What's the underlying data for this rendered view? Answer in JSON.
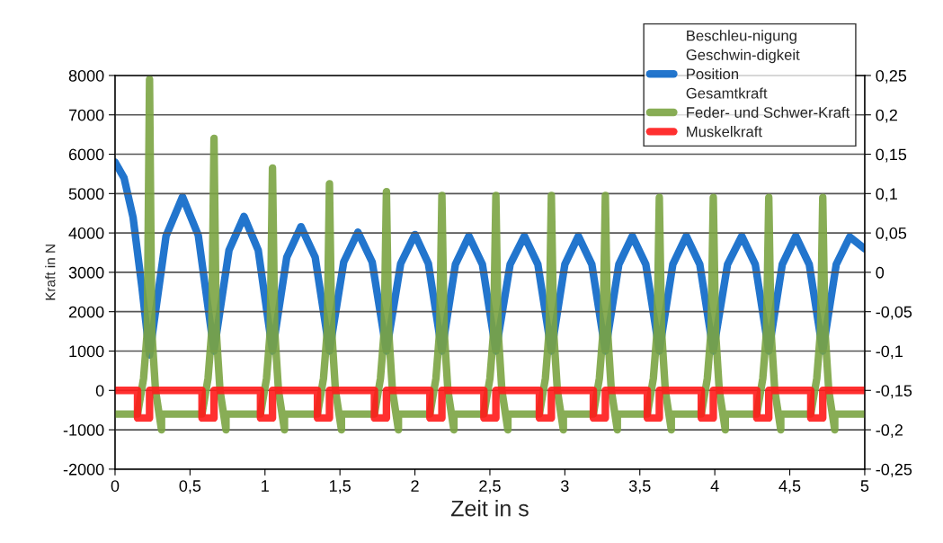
{
  "chart_data": {
    "type": "line",
    "xlabel": "Zeit in s",
    "ylabel": "Kraft in N",
    "xlim": [
      0,
      5
    ],
    "xticks": [
      0,
      {
        "value": 0.5,
        "label": "0,5"
      },
      1,
      {
        "value": 1.5,
        "label": "1,5"
      },
      2,
      {
        "value": 2.5,
        "label": "2,5"
      },
      3,
      {
        "value": 3.5,
        "label": "3,5"
      },
      4,
      {
        "value": 4.5,
        "label": "4,5"
      },
      5
    ],
    "ylim": [
      -2000,
      8000
    ],
    "yticks": [
      -2000,
      -1000,
      0,
      1000,
      2000,
      3000,
      4000,
      5000,
      6000,
      7000,
      8000
    ],
    "y2lim": [
      -0.25,
      0.25
    ],
    "y2ticks": [
      {
        "value": -0.25,
        "label": "-0,25"
      },
      {
        "value": -0.2,
        "label": "-0,2"
      },
      {
        "value": -0.15,
        "label": "-0,15"
      },
      {
        "value": -0.1,
        "label": "-0,1"
      },
      {
        "value": -0.05,
        "label": "-0,05"
      },
      0,
      {
        "value": 0.05,
        "label": "0,05"
      },
      {
        "value": 0.1,
        "label": "0,1"
      },
      {
        "value": 0.15,
        "label": "0,15"
      },
      {
        "value": 0.2,
        "label": "0,2"
      },
      {
        "value": 0.25,
        "label": "0,25"
      }
    ],
    "grid": "y",
    "legend": "top right",
    "marker": "none",
    "line_style": "solid",
    "series": [
      {
        "name": "Beschleu-nigung"
      },
      {
        "name": "Geschwin-digkeit"
      },
      {
        "name": "Position",
        "color": "#0a66c8",
        "axis": "y2",
        "x": [
          0,
          0.06,
          0.12,
          0.18,
          0.23,
          0.34,
          0.45,
          0.555,
          0.66,
          0.76,
          0.86,
          0.955,
          1.05,
          1.145,
          1.24,
          1.335,
          1.43,
          1.525,
          1.62,
          1.715,
          1.81,
          1.905,
          2.0,
          2.09,
          2.18,
          2.27,
          2.36,
          2.45,
          2.54,
          2.635,
          2.73,
          2.82,
          2.91,
          3.0,
          3.09,
          3.18,
          3.27,
          3.36,
          3.45,
          3.54,
          3.63,
          3.72,
          3.81,
          3.9,
          3.99,
          4.085,
          4.18,
          4.27,
          4.36,
          4.45,
          4.54,
          4.63,
          4.72,
          4.81,
          4.9,
          5.0
        ],
        "values": [
          0.14,
          0.12,
          0.07,
          -0.02,
          -0.105,
          0.046,
          0.096,
          0.047,
          -0.1,
          0.028,
          0.071,
          0.028,
          -0.1,
          0.019,
          0.058,
          0.019,
          -0.1,
          0.013,
          0.051,
          0.013,
          -0.1,
          0.011,
          0.048,
          0.011,
          -0.1,
          0.01,
          0.046,
          0.01,
          -0.1,
          0.01,
          0.046,
          0.01,
          -0.1,
          0.01,
          0.046,
          0.01,
          -0.1,
          0.01,
          0.046,
          0.01,
          -0.1,
          0.01,
          0.046,
          0.01,
          -0.1,
          0.01,
          0.046,
          0.01,
          -0.1,
          0.01,
          0.046,
          0.01,
          -0.1,
          0.01,
          0.045,
          0.03
        ]
      },
      {
        "name": "Gesamtkraft"
      },
      {
        "name": "Feder- und Schwer-Kraft",
        "color": "#7ba443",
        "x": [
          0,
          0.15,
          0.19,
          0.215,
          0.23,
          0.245,
          0.27,
          0.31,
          0.31,
          0.58,
          0.62,
          0.645,
          0.66,
          0.675,
          0.7,
          0.74,
          0.74,
          0.97,
          1.01,
          1.035,
          1.05,
          1.065,
          1.09,
          1.13,
          1.13,
          1.35,
          1.39,
          1.415,
          1.43,
          1.445,
          1.47,
          1.51,
          1.51,
          1.73,
          1.77,
          1.795,
          1.81,
          1.825,
          1.85,
          1.89,
          1.89,
          2.1,
          2.14,
          2.165,
          2.18,
          2.195,
          2.22,
          2.26,
          2.26,
          2.46,
          2.5,
          2.525,
          2.54,
          2.555,
          2.58,
          2.62,
          2.62,
          2.83,
          2.87,
          2.895,
          2.91,
          2.925,
          2.95,
          2.99,
          2.99,
          3.19,
          3.23,
          3.255,
          3.27,
          3.285,
          3.31,
          3.35,
          3.35,
          3.55,
          3.59,
          3.615,
          3.63,
          3.645,
          3.67,
          3.71,
          3.71,
          3.91,
          3.95,
          3.975,
          3.99,
          4.005,
          4.03,
          4.07,
          4.07,
          4.28,
          4.32,
          4.345,
          4.36,
          4.375,
          4.4,
          4.44,
          4.44,
          4.64,
          4.68,
          4.705,
          4.72,
          4.735,
          4.76,
          4.8,
          4.8,
          5.0
        ],
        "values": [
          -600,
          -600,
          300,
          1500,
          7900,
          1500,
          0,
          -1000,
          -600,
          -600,
          300,
          1500,
          6400,
          1500,
          0,
          -1000,
          -600,
          -600,
          300,
          1500,
          5650,
          1500,
          0,
          -1000,
          -600,
          -600,
          300,
          1500,
          5250,
          1500,
          0,
          -1000,
          -600,
          -600,
          300,
          1500,
          5050,
          1500,
          0,
          -1000,
          -600,
          -600,
          300,
          1500,
          4950,
          1500,
          0,
          -1000,
          -600,
          -600,
          300,
          1500,
          4950,
          1500,
          0,
          -1000,
          -600,
          -600,
          300,
          1500,
          4950,
          1500,
          0,
          -1000,
          -600,
          -600,
          300,
          1500,
          4950,
          1500,
          0,
          -1000,
          -600,
          -600,
          300,
          1500,
          4900,
          1500,
          0,
          -1000,
          -600,
          -600,
          300,
          1500,
          4900,
          1500,
          0,
          -1000,
          -600,
          -600,
          300,
          1500,
          4900,
          1500,
          0,
          -1000,
          -600,
          -600,
          300,
          1500,
          4900,
          1500,
          0,
          -1000,
          -600,
          -600
        ]
      },
      {
        "name": "Muskelkraft",
        "color": "#ff1a1a",
        "type": "step",
        "x": [
          0,
          0.15,
          0.15,
          0.23,
          0.23,
          0.58,
          0.58,
          0.66,
          0.66,
          0.97,
          0.97,
          1.05,
          1.05,
          1.35,
          1.35,
          1.43,
          1.43,
          1.73,
          1.73,
          1.81,
          1.81,
          2.1,
          2.1,
          2.18,
          2.18,
          2.46,
          2.46,
          2.54,
          2.54,
          2.83,
          2.83,
          2.91,
          2.91,
          3.19,
          3.19,
          3.27,
          3.27,
          3.55,
          3.55,
          3.63,
          3.63,
          3.91,
          3.91,
          3.99,
          3.99,
          4.28,
          4.28,
          4.36,
          4.36,
          4.64,
          4.64,
          4.72,
          4.72,
          5.0
        ],
        "values": [
          0,
          0,
          -700,
          -700,
          0,
          0,
          -700,
          -700,
          0,
          0,
          -700,
          -700,
          0,
          0,
          -700,
          -700,
          0,
          0,
          -700,
          -700,
          0,
          0,
          -700,
          -700,
          0,
          0,
          -700,
          -700,
          0,
          0,
          -700,
          -700,
          0,
          0,
          -700,
          -700,
          0,
          0,
          -700,
          -700,
          0,
          0,
          -700,
          -700,
          0,
          0,
          -700,
          -700,
          0,
          0,
          -700,
          -700,
          0,
          0
        ]
      }
    ]
  }
}
